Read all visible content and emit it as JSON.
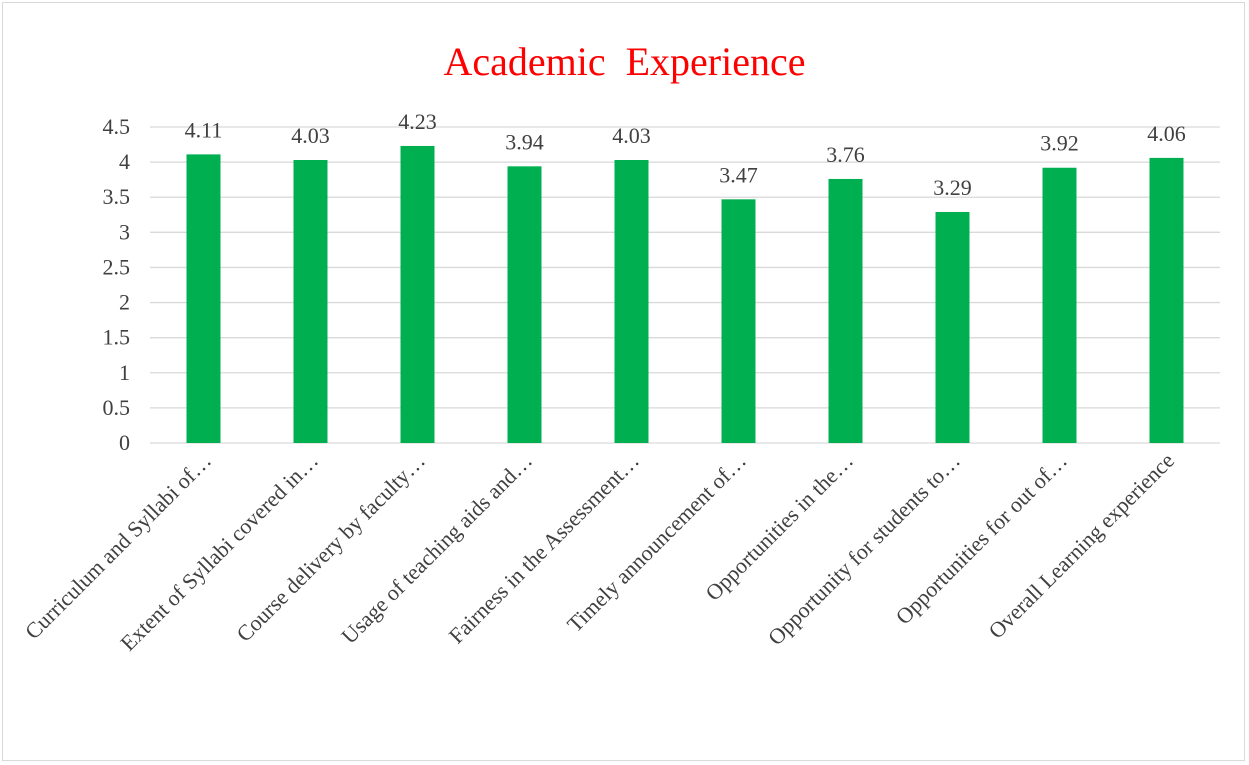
{
  "chart_data": {
    "type": "bar",
    "title": "Academic  Experience",
    "xlabel": "",
    "ylabel": "",
    "categories": [
      "Curriculum and Syllabi of…",
      "Extent of Syllabi covered in…",
      "Course delivery by faculty…",
      "Usage of teaching aids and…",
      "Fairness in the Assessment…",
      "Timely announcement of…",
      "Opportunities in the…",
      "Opportunity for students to…",
      "Opportunities for out of…",
      "Overall Learning experience"
    ],
    "values": [
      4.11,
      4.03,
      4.23,
      3.94,
      4.03,
      3.47,
      3.76,
      3.29,
      3.92,
      4.06
    ],
    "data_labels": [
      "4.11",
      "4.03",
      "4.23",
      "3.94",
      "4.03",
      "3.47",
      "3.76",
      "3.29",
      "3.92",
      "4.06"
    ],
    "ylim": [
      0,
      4.5
    ],
    "yticks": [
      "0",
      "0.5",
      "1",
      "1.5",
      "2",
      "2.5",
      "3",
      "3.5",
      "4",
      "4.5"
    ],
    "grid": true,
    "legend": "none",
    "colors": {
      "bar": "#00b050",
      "title": "#ff0000",
      "text": "#404040",
      "grid": "#d9d9d9"
    }
  }
}
